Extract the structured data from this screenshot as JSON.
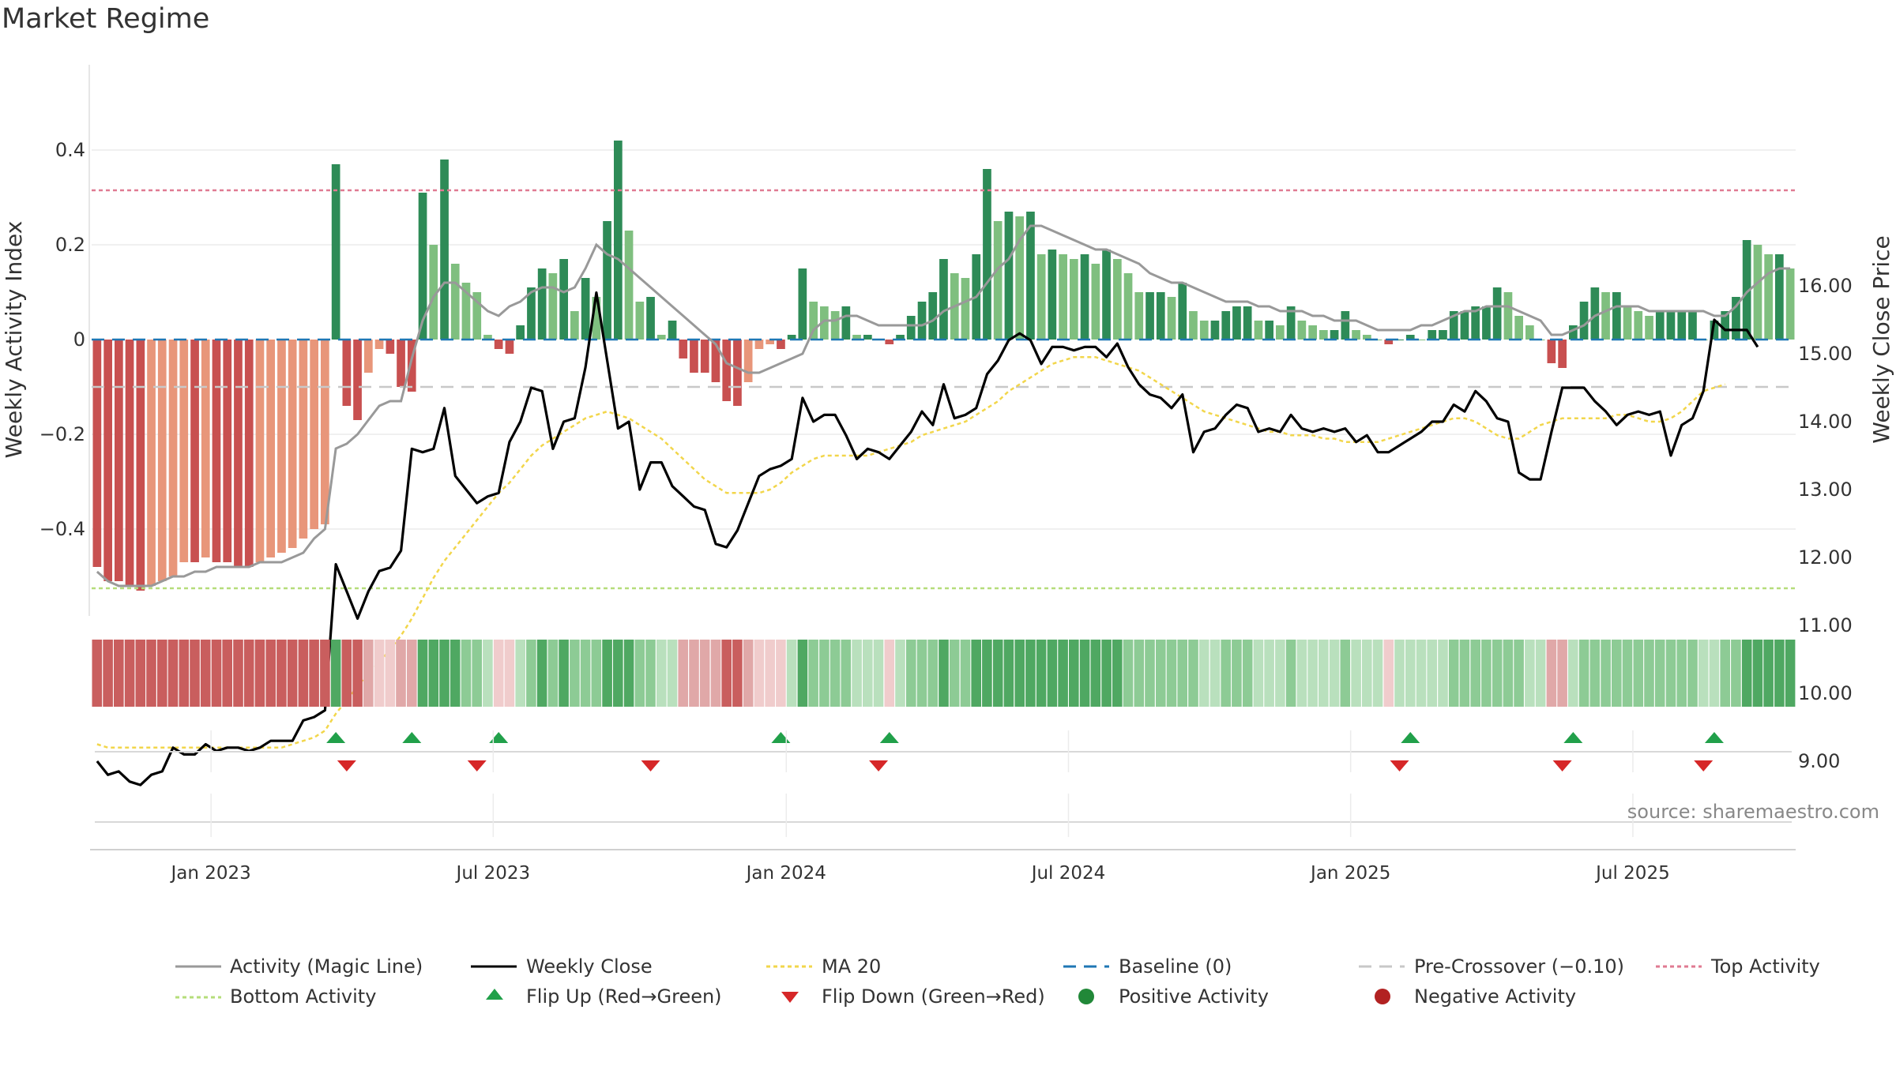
{
  "title": "Market Regime",
  "source": "source: sharemaestro.com",
  "colors": {
    "dark_green": "#2e8b57",
    "light_green": "#7fbf7f",
    "dark_red": "#c85050",
    "light_red": "#e8967a",
    "magic_line": "#999999",
    "close": "#000000",
    "ma20": "#f2d64b",
    "baseline": "#1f77b4",
    "precross": "#c8c8c8",
    "top": "#e07a92",
    "bottom": "#b5dd7a",
    "flip_up": "#21a04a",
    "flip_down": "#d62728",
    "positive": "#218838",
    "negative": "#b22222"
  },
  "chart_data": {
    "type": "bar",
    "x_ticks": [
      "Jan 2023",
      "Jul 2023",
      "Jan 2024",
      "Jul 2024",
      "Jan 2025",
      "Jul 2025"
    ],
    "left_axis": {
      "label": "Weekly Activity Index",
      "ticks": [
        "0.4",
        "0.2",
        "0",
        "−0.2",
        "−0.4"
      ],
      "range": [
        -0.52,
        0.52
      ]
    },
    "right_axis": {
      "label": "Weekly Close Price",
      "ticks": [
        "16.00",
        "15.00",
        "14.00",
        "13.00",
        "12.00",
        "11.00",
        "10.00",
        "9.00"
      ],
      "range": [
        8.6,
        16.2
      ]
    },
    "top_activity": 0.315,
    "bottom_activity": -0.525,
    "pre_crossover": -0.1,
    "baseline": 0,
    "activity": [
      -0.48,
      -0.51,
      -0.51,
      -0.52,
      -0.53,
      -0.52,
      -0.51,
      -0.5,
      -0.47,
      -0.47,
      -0.46,
      -0.47,
      -0.47,
      -0.48,
      -0.48,
      -0.47,
      -0.46,
      -0.45,
      -0.44,
      -0.42,
      -0.4,
      -0.39,
      0.37,
      -0.14,
      -0.17,
      -0.07,
      -0.02,
      -0.03,
      -0.1,
      -0.11,
      0.31,
      0.2,
      0.38,
      0.16,
      0.12,
      0.1,
      0.01,
      -0.02,
      -0.03,
      0.03,
      0.11,
      0.15,
      0.14,
      0.17,
      0.06,
      0.13,
      0.09,
      0.25,
      0.42,
      0.23,
      0.08,
      0.09,
      0.01,
      0.04,
      -0.04,
      -0.07,
      -0.07,
      -0.09,
      -0.13,
      -0.14,
      -0.09,
      -0.02,
      -0.01,
      -0.02,
      0.01,
      0.15,
      0.08,
      0.07,
      0.06,
      0.07,
      0.01,
      0.01,
      0.0,
      -0.01,
      0.01,
      0.05,
      0.08,
      0.1,
      0.17,
      0.14,
      0.13,
      0.18,
      0.36,
      0.25,
      0.27,
      0.26,
      0.27,
      0.18,
      0.19,
      0.18,
      0.17,
      0.18,
      0.16,
      0.19,
      0.17,
      0.14,
      0.1,
      0.1,
      0.1,
      0.09,
      0.12,
      0.06,
      0.04,
      0.04,
      0.06,
      0.07,
      0.07,
      0.04,
      0.04,
      0.03,
      0.07,
      0.04,
      0.03,
      0.02,
      0.02,
      0.06,
      0.02,
      0.01,
      0.0,
      -0.01,
      0.0,
      0.01,
      0.0,
      0.02,
      0.02,
      0.06,
      0.06,
      0.07,
      0.07,
      0.11,
      0.1,
      0.05,
      0.03,
      0.0,
      -0.05,
      -0.06,
      0.03,
      0.08,
      0.11,
      0.1,
      0.1,
      0.07,
      0.06,
      0.05,
      0.06,
      0.06,
      0.06,
      0.06,
      0.0,
      0.04,
      0.06,
      0.09,
      0.21,
      0.2,
      0.18,
      0.18,
      0.15
    ],
    "magic_line": [
      -0.49,
      -0.51,
      -0.52,
      -0.52,
      -0.52,
      -0.52,
      -0.51,
      -0.5,
      -0.5,
      -0.49,
      -0.49,
      -0.48,
      -0.48,
      -0.48,
      -0.48,
      -0.47,
      -0.47,
      -0.47,
      -0.46,
      -0.45,
      -0.42,
      -0.4,
      -0.23,
      -0.22,
      -0.2,
      -0.17,
      -0.14,
      -0.13,
      -0.13,
      -0.04,
      0.04,
      0.09,
      0.12,
      0.12,
      0.1,
      0.08,
      0.06,
      0.05,
      0.07,
      0.08,
      0.1,
      0.11,
      0.11,
      0.1,
      0.11,
      0.15,
      0.2,
      0.18,
      0.17,
      0.15,
      0.13,
      0.11,
      0.09,
      0.07,
      0.05,
      0.03,
      0.01,
      -0.01,
      -0.05,
      -0.06,
      -0.07,
      -0.07,
      -0.06,
      -0.05,
      -0.04,
      -0.03,
      0.02,
      0.04,
      0.04,
      0.05,
      0.05,
      0.04,
      0.03,
      0.03,
      0.03,
      0.03,
      0.03,
      0.04,
      0.06,
      0.07,
      0.08,
      0.09,
      0.12,
      0.15,
      0.17,
      0.21,
      0.24,
      0.24,
      0.23,
      0.22,
      0.21,
      0.2,
      0.19,
      0.19,
      0.18,
      0.17,
      0.16,
      0.14,
      0.13,
      0.12,
      0.12,
      0.11,
      0.1,
      0.09,
      0.08,
      0.08,
      0.08,
      0.07,
      0.07,
      0.06,
      0.06,
      0.06,
      0.05,
      0.05,
      0.04,
      0.04,
      0.04,
      0.03,
      0.02,
      0.02,
      0.02,
      0.02,
      0.03,
      0.03,
      0.04,
      0.05,
      0.06,
      0.06,
      0.07,
      0.07,
      0.07,
      0.06,
      0.05,
      0.04,
      0.01,
      0.01,
      0.02,
      0.03,
      0.05,
      0.06,
      0.07,
      0.07,
      0.07,
      0.06,
      0.06,
      0.06,
      0.06,
      0.06,
      0.06,
      0.05,
      0.05,
      0.07,
      0.1,
      0.12,
      0.14,
      0.15,
      0.15
    ],
    "weekly_close": [
      9.0,
      8.8,
      8.85,
      8.7,
      8.65,
      8.8,
      8.85,
      9.2,
      9.1,
      9.1,
      9.25,
      9.15,
      9.2,
      9.2,
      9.15,
      9.2,
      9.3,
      9.3,
      9.3,
      9.6,
      9.65,
      9.75,
      11.9,
      11.5,
      11.1,
      11.5,
      11.8,
      11.85,
      12.1,
      13.6,
      13.55,
      13.6,
      14.2,
      13.2,
      13.0,
      12.8,
      12.9,
      12.95,
      13.7,
      14.0,
      14.5,
      14.45,
      13.6,
      14.0,
      14.05,
      14.8,
      15.9,
      14.9,
      13.9,
      14.0,
      13.0,
      13.4,
      13.4,
      13.05,
      12.9,
      12.75,
      12.7,
      12.2,
      12.15,
      12.4,
      12.8,
      13.2,
      13.3,
      13.35,
      13.45,
      14.35,
      14.0,
      14.1,
      14.1,
      13.8,
      13.45,
      13.6,
      13.55,
      13.45,
      13.65,
      13.85,
      14.15,
      13.95,
      14.55,
      14.05,
      14.1,
      14.2,
      14.7,
      14.9,
      15.2,
      15.3,
      15.2,
      14.85,
      15.1,
      15.1,
      15.05,
      15.1,
      15.1,
      14.95,
      15.15,
      14.8,
      14.55,
      14.4,
      14.35,
      14.2,
      14.4,
      13.55,
      13.85,
      13.9,
      14.1,
      14.25,
      14.2,
      13.85,
      13.9,
      13.85,
      14.1,
      13.9,
      13.85,
      13.9,
      13.85,
      13.9,
      13.7,
      13.8,
      13.55,
      13.55,
      13.65,
      13.75,
      13.85,
      14.0,
      14.0,
      14.25,
      14.15,
      14.45,
      14.3,
      14.05,
      14.0,
      13.25,
      13.15,
      13.15,
      13.85,
      14.5,
      14.5,
      14.5,
      14.3,
      14.15,
      13.95,
      14.1,
      14.15,
      14.1,
      14.15,
      13.5,
      13.95,
      14.05,
      14.45,
      15.5,
      15.35,
      15.35,
      15.35,
      15.1
    ],
    "ma20": [
      9.25,
      9.2,
      9.2,
      9.2,
      9.2,
      9.2,
      9.2,
      9.2,
      9.2,
      9.2,
      9.2,
      9.2,
      9.2,
      9.2,
      9.2,
      9.2,
      9.2,
      9.2,
      9.25,
      9.3,
      9.35,
      9.45,
      9.7,
      9.9,
      10.1,
      10.3,
      10.45,
      10.65,
      10.85,
      11.1,
      11.4,
      11.7,
      11.95,
      12.15,
      12.35,
      12.55,
      12.75,
      12.95,
      13.1,
      13.3,
      13.5,
      13.65,
      13.75,
      13.85,
      13.95,
      14.05,
      14.1,
      14.15,
      14.1,
      14.05,
      13.95,
      13.85,
      13.75,
      13.6,
      13.45,
      13.3,
      13.15,
      13.05,
      12.95,
      12.95,
      12.95,
      12.95,
      13.0,
      13.1,
      13.25,
      13.35,
      13.45,
      13.5,
      13.5,
      13.5,
      13.5,
      13.5,
      13.55,
      13.6,
      13.65,
      13.7,
      13.8,
      13.85,
      13.9,
      13.95,
      14.0,
      14.1,
      14.2,
      14.3,
      14.45,
      14.55,
      14.65,
      14.75,
      14.85,
      14.9,
      14.95,
      14.95,
      14.95,
      14.9,
      14.85,
      14.8,
      14.75,
      14.65,
      14.55,
      14.45,
      14.35,
      14.25,
      14.15,
      14.1,
      14.05,
      14.0,
      13.95,
      13.9,
      13.85,
      13.85,
      13.8,
      13.8,
      13.8,
      13.75,
      13.75,
      13.7,
      13.7,
      13.7,
      13.7,
      13.75,
      13.8,
      13.85,
      13.9,
      13.95,
      14.0,
      14.05,
      14.05,
      14.0,
      13.9,
      13.8,
      13.75,
      13.75,
      13.85,
      13.95,
      14.0,
      14.05,
      14.05,
      14.05,
      14.05,
      14.05,
      14.1,
      14.1,
      14.05,
      14.0,
      14.0,
      14.05,
      14.15,
      14.3,
      14.45,
      14.5,
      14.55
    ],
    "flip_up_weeks": [
      22,
      29,
      37,
      63,
      73,
      121,
      136,
      149
    ],
    "flip_down_weeks": [
      23,
      35,
      51,
      72,
      120,
      135,
      148
    ],
    "legend": [
      "Activity (Magic Line)",
      "Weekly Close",
      "MA 20",
      "Baseline (0)",
      "Pre-Crossover (−0.10)",
      "Top Activity",
      "Bottom Activity",
      "Flip Up (Red→Green)",
      "Flip Down (Green→Red)",
      "Positive Activity",
      "Negative Activity"
    ]
  }
}
